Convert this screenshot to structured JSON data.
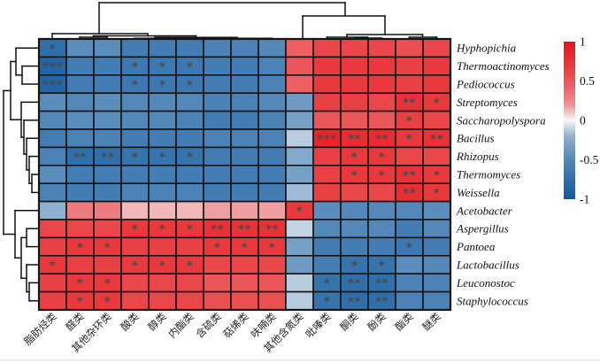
{
  "figure_title": "",
  "colorbar": {
    "ticks": [
      "1",
      "0.5",
      "0",
      "-0.5",
      "-1"
    ],
    "min": -1,
    "max": 1
  },
  "chart_data": {
    "type": "heatmap",
    "title": "",
    "xlabel": "",
    "ylabel": "",
    "legend_position": "right",
    "grid": true,
    "value_range": [
      -1,
      1
    ],
    "rows": [
      "Hyphopichia",
      "Thermoactinomyces",
      "Pediococcus",
      "Streptomyces",
      "Saccharopolyspora",
      "Bacillus",
      "Rhizopus",
      "Thermomyces",
      "Weissella",
      "Acetobacter",
      "Aspergillus",
      "Pantoea",
      "Lactobacillus",
      "Leuconostoc",
      "Staphylococcus"
    ],
    "columns": [
      "脂肪烃类",
      "醛类",
      "其他杂环类",
      "酸类",
      "醇类",
      "内酯类",
      "含硫类",
      "萜烯类",
      "呋喃类",
      "其他含氮类",
      "吡嗪类",
      "酮类",
      "酚类",
      "酯类",
      "醚类"
    ],
    "values": [
      [
        -0.75,
        -0.45,
        -0.45,
        -0.6,
        -0.6,
        -0.6,
        -0.55,
        -0.55,
        -0.5,
        0.45,
        0.6,
        0.6,
        0.6,
        0.55,
        0.6
      ],
      [
        -0.85,
        -0.6,
        -0.6,
        -0.65,
        -0.65,
        -0.65,
        -0.6,
        -0.6,
        -0.55,
        0.5,
        0.7,
        0.7,
        0.7,
        0.65,
        0.7
      ],
      [
        -0.85,
        -0.6,
        -0.6,
        -0.65,
        -0.65,
        -0.65,
        -0.6,
        -0.6,
        -0.55,
        0.45,
        0.7,
        0.7,
        0.7,
        0.65,
        0.7
      ],
      [
        -0.45,
        -0.5,
        -0.45,
        -0.5,
        -0.5,
        -0.5,
        -0.55,
        -0.55,
        -0.5,
        -0.35,
        0.65,
        0.65,
        0.6,
        0.75,
        0.7
      ],
      [
        -0.5,
        -0.45,
        -0.45,
        -0.5,
        -0.5,
        -0.55,
        -0.6,
        -0.6,
        -0.55,
        -0.3,
        0.5,
        0.5,
        0.5,
        0.65,
        0.6
      ],
      [
        -0.6,
        -0.55,
        -0.55,
        -0.6,
        -0.6,
        -0.6,
        -0.55,
        -0.55,
        -0.55,
        -0.07,
        0.85,
        0.8,
        0.8,
        0.7,
        0.75
      ],
      [
        -0.55,
        -0.75,
        -0.75,
        -0.7,
        -0.7,
        -0.7,
        -0.6,
        -0.6,
        -0.6,
        -0.25,
        0.65,
        0.7,
        0.7,
        0.6,
        0.6
      ],
      [
        -0.45,
        -0.6,
        -0.6,
        -0.6,
        -0.6,
        -0.6,
        -0.6,
        -0.6,
        -0.6,
        -0.3,
        0.65,
        0.7,
        0.7,
        0.75,
        0.7
      ],
      [
        -0.55,
        -0.6,
        -0.6,
        -0.55,
        -0.55,
        -0.55,
        -0.6,
        -0.6,
        -0.6,
        -0.15,
        0.65,
        0.6,
        0.6,
        0.78,
        0.7
      ],
      [
        -0.2,
        0.3,
        0.3,
        0.08,
        0.08,
        0.08,
        0.15,
        0.15,
        0.15,
        0.7,
        -0.45,
        -0.5,
        -0.5,
        -0.5,
        -0.45
      ],
      [
        0.6,
        0.6,
        0.6,
        0.7,
        0.7,
        0.7,
        0.75,
        0.75,
        0.75,
        -0.05,
        -0.5,
        -0.5,
        -0.5,
        -0.6,
        -0.5
      ],
      [
        0.65,
        0.7,
        0.7,
        0.65,
        0.65,
        0.65,
        0.7,
        0.7,
        0.7,
        -0.3,
        -0.6,
        -0.6,
        -0.6,
        -0.65,
        -0.6
      ],
      [
        0.7,
        0.65,
        0.65,
        0.7,
        0.7,
        0.7,
        0.6,
        0.6,
        0.6,
        -0.35,
        -0.6,
        -0.7,
        -0.7,
        -0.45,
        -0.5
      ],
      [
        0.65,
        0.7,
        0.7,
        0.6,
        0.6,
        0.6,
        0.5,
        0.5,
        0.5,
        -0.08,
        -0.7,
        -0.75,
        -0.75,
        -0.55,
        -0.55
      ],
      [
        0.65,
        0.7,
        0.7,
        0.6,
        0.6,
        0.6,
        0.55,
        0.55,
        0.55,
        -0.08,
        -0.7,
        -0.75,
        -0.75,
        -0.55,
        -0.55
      ]
    ],
    "significance": [
      [
        "*",
        "",
        "",
        "",
        "",
        "",
        "",
        "",
        "",
        "",
        "",
        "",
        "",
        "",
        ""
      ],
      [
        "***",
        "",
        "",
        "*",
        "*",
        "*",
        "",
        "",
        "",
        "",
        "",
        "",
        "",
        "",
        ""
      ],
      [
        "***",
        "",
        "",
        "*",
        "*",
        "*",
        "",
        "",
        "",
        "",
        "",
        "",
        "",
        "",
        ""
      ],
      [
        "",
        "",
        "",
        "",
        "",
        "",
        "",
        "",
        "",
        "",
        "",
        "",
        "",
        "**",
        "*"
      ],
      [
        "",
        "",
        "",
        "",
        "",
        "",
        "",
        "",
        "",
        "",
        "",
        "",
        "",
        "*",
        ""
      ],
      [
        "",
        "",
        "",
        "",
        "",
        "",
        "",
        "",
        "",
        "",
        "***",
        "**",
        "**",
        "*",
        "**"
      ],
      [
        "",
        "**",
        "**",
        "*",
        "*",
        "*",
        "",
        "",
        "",
        "",
        "",
        "*",
        "*",
        "",
        ""
      ],
      [
        "",
        "",
        "",
        "",
        "",
        "",
        "",
        "",
        "",
        "",
        "",
        "*",
        "*",
        "**",
        "*"
      ],
      [
        "",
        "",
        "",
        "",
        "",
        "",
        "",
        "",
        "",
        "",
        "",
        "",
        "",
        "**",
        "*"
      ],
      [
        "",
        "",
        "",
        "",
        "",
        "",
        "",
        "",
        "",
        "*",
        "",
        "",
        "",
        "",
        ""
      ],
      [
        "",
        "",
        "",
        "*",
        "*",
        "*",
        "**",
        "**",
        "**",
        "",
        "",
        "",
        "",
        "",
        ""
      ],
      [
        "",
        "*",
        "*",
        "",
        "",
        "",
        "*",
        "*",
        "*",
        "",
        "",
        "",
        "",
        "*",
        ""
      ],
      [
        "*",
        "",
        "",
        "*",
        "*",
        "*",
        "",
        "",
        "",
        "",
        "",
        "*",
        "*",
        "",
        ""
      ],
      [
        "",
        "*",
        "*",
        "",
        "",
        "",
        "",
        "",
        "",
        "",
        "*",
        "**",
        "**",
        "",
        ""
      ],
      [
        "",
        "*",
        "*",
        "",
        "",
        "",
        "",
        "",
        "",
        "",
        "*",
        "**",
        "**",
        "",
        ""
      ]
    ],
    "colorbar_ticks": [
      "1",
      "0.5",
      "0",
      "-0.5",
      "-1"
    ],
    "colors": {
      "positive_max": "#e61419",
      "negative_max": "#105aa0",
      "zero": "#f7f7f7",
      "grid_line": "#141414",
      "dendrogram_line": "#111111",
      "star": "#4a4a4a"
    }
  }
}
